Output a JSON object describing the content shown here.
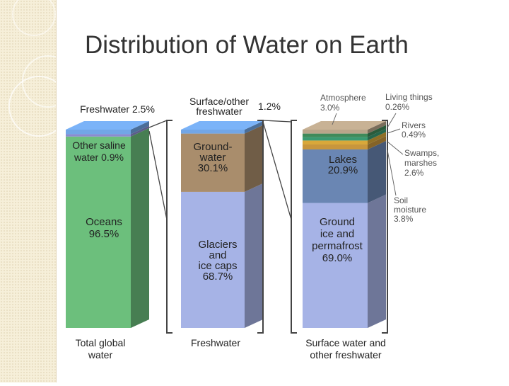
{
  "slide": {
    "title": "Distribution of Water on Earth"
  },
  "colors": {
    "oceans": "#6cbf7c",
    "other_saline": "#8b8bd0",
    "freshwater_top": "#72a6e6",
    "groundwater": "#a98d6c",
    "glaciers": "#a6b3e6",
    "ground_ice": "#a6b3e6",
    "lakes": "#6a86b3",
    "atmosphere": "#b9a58a",
    "living": "#3f8a5a",
    "rivers": "#3a9a72",
    "swamps": "#d9a83a",
    "soil": "#c8963d",
    "bracket": "#444444"
  },
  "chart_data": {
    "type": "bar",
    "title": "Distribution of Water on Earth",
    "stacked": true,
    "normalized": true,
    "categories": [
      "Total global water",
      "Freshwater",
      "Surface water and other freshwater"
    ],
    "columns": [
      {
        "category": "Total global water",
        "segments": [
          {
            "name": "Oceans",
            "value": 96.5,
            "text": [
              "Oceans",
              "96.5%"
            ],
            "color": "#6cbf7c"
          },
          {
            "name": "Other saline water",
            "value": 0.9,
            "text": [
              "Other saline",
              "water 0.9%"
            ],
            "color": "#8b8bd0"
          },
          {
            "name": "Freshwater",
            "value": 2.5,
            "text": [
              "Freshwater 2.5%"
            ],
            "color": "#72a6e6"
          }
        ]
      },
      {
        "category": "Freshwater",
        "segments": [
          {
            "name": "Glaciers and ice caps",
            "value": 68.7,
            "text": [
              "Glaciers",
              "and",
              "ice caps",
              "68.7%"
            ],
            "color": "#a6b3e6"
          },
          {
            "name": "Groundwater",
            "value": 30.1,
            "text": [
              "Ground-",
              "water",
              "30.1%"
            ],
            "color": "#a98d6c"
          },
          {
            "name": "Surface/other freshwater",
            "value": 1.2,
            "text": [
              "Surface/other",
              "freshwater",
              "1.2%"
            ],
            "color": "#72a6e6"
          }
        ]
      },
      {
        "category": "Surface water and other freshwater",
        "segments": [
          {
            "name": "Ground ice and permafrost",
            "value": 69.0,
            "text": [
              "Ground",
              "ice and",
              "permafrost",
              "69.0%"
            ],
            "color": "#a6b3e6"
          },
          {
            "name": "Lakes",
            "value": 20.9,
            "text": [
              "Lakes",
              "20.9%"
            ],
            "color": "#6a86b3"
          },
          {
            "name": "Soil moisture",
            "value": 3.8,
            "text": [
              "Soil",
              "moisture",
              "3.8%"
            ],
            "color": "#c8963d"
          },
          {
            "name": "Swamps, marshes",
            "value": 2.6,
            "text": [
              "Swamps,",
              "marshes",
              "2.6%"
            ],
            "color": "#d9a83a"
          },
          {
            "name": "Rivers",
            "value": 0.49,
            "text": [
              "Rivers",
              "0.49%"
            ],
            "color": "#3a9a72"
          },
          {
            "name": "Living things",
            "value": 0.26,
            "text": [
              "Living things",
              "0.26%"
            ],
            "color": "#3f8a5a"
          },
          {
            "name": "Atmosphere",
            "value": 3.0,
            "text": [
              "Atmosphere",
              "3.0%"
            ],
            "color": "#b9a58a"
          }
        ]
      }
    ],
    "category_labels": [
      [
        "Total global",
        "water"
      ],
      [
        "Freshwater"
      ],
      [
        "Surface water and",
        "other freshwater"
      ]
    ]
  }
}
